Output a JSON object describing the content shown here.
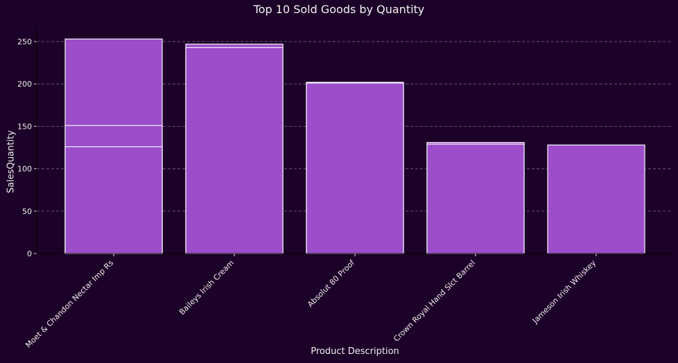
{
  "chart_data": {
    "type": "bar",
    "title": "Top 10 Sold Goods by Quantity",
    "xlabel": "Product Description",
    "ylabel": "SalesQuantity",
    "ylim": [
      0,
      265
    ],
    "yticks": [
      0,
      50,
      100,
      150,
      200,
      250
    ],
    "grid": "y dashed",
    "categories": [
      "Moet & Chandon Nectar Imp Rs",
      "Baileys Irish Cream",
      "Absolut 80 Proof",
      "Crown Royal Hand Slct Barrel",
      "Jameson Irish Whiskey"
    ],
    "bars": [
      {
        "category": "Moet & Chandon Nectar Imp Rs",
        "value": 253
      },
      {
        "category": "Baileys Irish Cream",
        "value": 247
      },
      {
        "category": "Baileys Irish Cream",
        "value": 243
      },
      {
        "category": "Absolut 80 Proof",
        "value": 202
      },
      {
        "category": "Moet & Chandon Nectar Imp Rs",
        "value": 151
      },
      {
        "category": "Crown Royal Hand Slct Barrel",
        "value": 131
      },
      {
        "category": "Crown Royal Hand Slct Barrel",
        "value": 129
      },
      {
        "category": "Jameson Irish Whiskey",
        "value": 128
      },
      {
        "category": "Moet & Chandon Nectar Imp Rs",
        "value": 126
      },
      {
        "category": "Absolut 80 Proof",
        "value": 201
      }
    ],
    "colors": {
      "bar": "#9b4dca",
      "edge": "#f0e6f5",
      "background": "#1c0228",
      "grid": "#6a5578"
    }
  }
}
